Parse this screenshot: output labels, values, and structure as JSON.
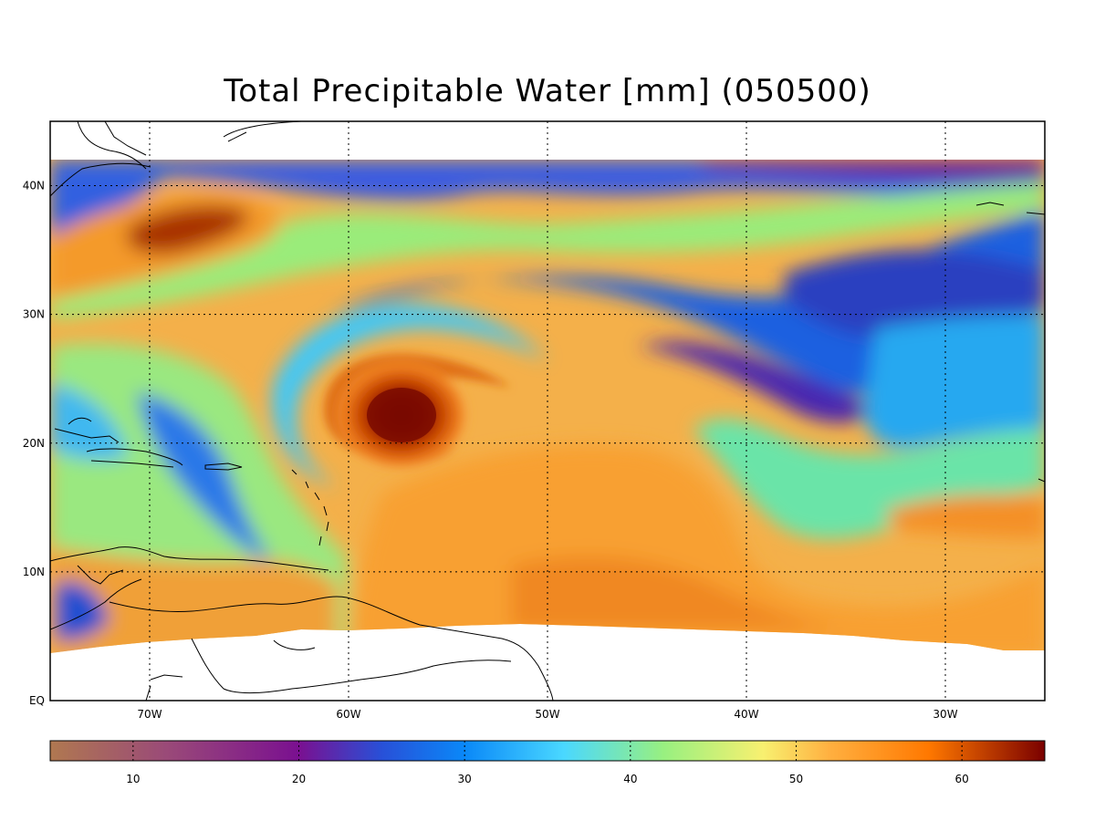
{
  "map": {
    "title": "Total Precipitable Water [mm]  (050500)",
    "lat_labels": [
      "40N",
      "30N",
      "20N",
      "10N",
      "EQ"
    ],
    "lon_labels": [
      "70W",
      "60W",
      "50W",
      "40W",
      "30W"
    ],
    "extent": {
      "lon": [
        -75,
        -25
      ],
      "lat": [
        0,
        45
      ]
    },
    "data_coverage_lat": [
      4,
      42
    ],
    "storm_center": {
      "lon": -57,
      "lat": 22,
      "tpw": 66
    }
  },
  "colorbar": {
    "tick_labels": [
      "10",
      "20",
      "30",
      "40",
      "50",
      "60"
    ],
    "range": [
      5,
      65
    ],
    "stops": [
      {
        "v": 5,
        "c": "#b07850"
      },
      {
        "v": 12,
        "c": "#9a4a78"
      },
      {
        "v": 20,
        "c": "#7a1090"
      },
      {
        "v": 25,
        "c": "#2850d8"
      },
      {
        "v": 30,
        "c": "#0a88f8"
      },
      {
        "v": 36,
        "c": "#4ad8ff"
      },
      {
        "v": 42,
        "c": "#98f080"
      },
      {
        "v": 48,
        "c": "#f8f070"
      },
      {
        "v": 52,
        "c": "#ffb040"
      },
      {
        "v": 58,
        "c": "#ff7800"
      },
      {
        "v": 65,
        "c": "#7a0000"
      }
    ]
  }
}
